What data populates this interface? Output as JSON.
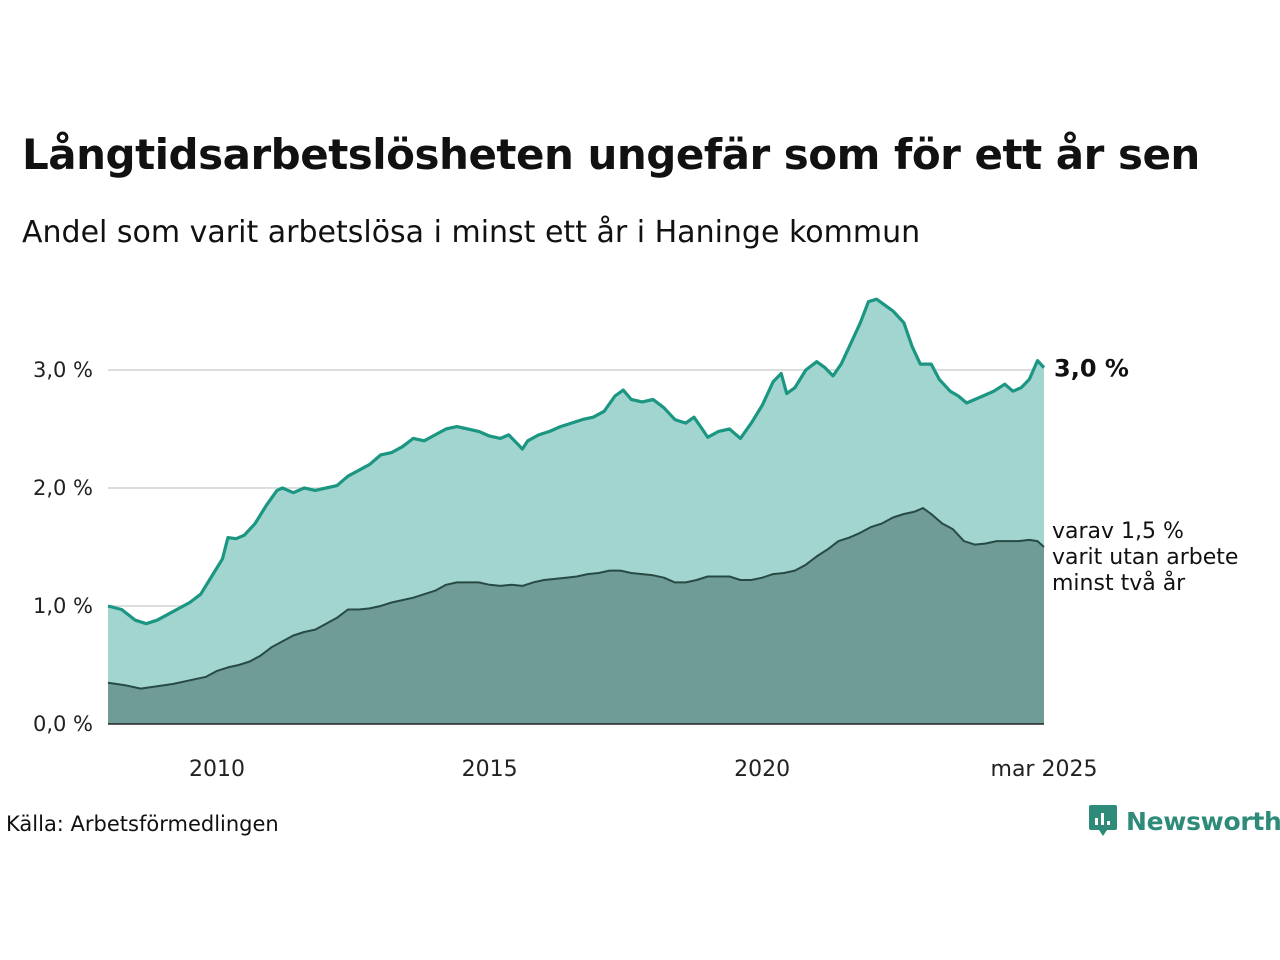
{
  "title": "Långtidsarbetslösheten ungefär som för ett år sen",
  "subtitle": "Andel som varit arbetslösa i minst ett år i Haninge kommun",
  "source": "Källa: Arbetsförmedlingen",
  "brand": "Newsworthy",
  "colors": {
    "series1_line": "#1a9682",
    "series1_fill": "#a2d5cf",
    "series2_line": "#284a46",
    "series2_fill": "#6f9c96",
    "grid": "#dddddd",
    "brand": "#2e8b7a"
  },
  "chart_data": {
    "type": "area",
    "title": "Långtidsarbetslösheten ungefär som för ett år sen",
    "subtitle": "Andel som varit arbetslösa i minst ett år i Haninge kommun",
    "x_unit": "year (decimal)",
    "xlim": [
      2008.0,
      2025.17
    ],
    "ylim": [
      0,
      3.5
    ],
    "y_ticks": [
      {
        "value": 0,
        "label": "0,0 %"
      },
      {
        "value": 1,
        "label": "1,0 %"
      },
      {
        "value": 2,
        "label": "2,0 %"
      },
      {
        "value": 3,
        "label": "3,0 %"
      }
    ],
    "x_ticks": [
      {
        "value": 2010,
        "label": "2010"
      },
      {
        "value": 2015,
        "label": "2015"
      },
      {
        "value": 2020,
        "label": "2020"
      },
      {
        "value": 2025.17,
        "label": "mar 2025"
      }
    ],
    "grid": true,
    "series": [
      {
        "label_end": "3,0 %",
        "points": [
          [
            2008.0,
            1.0
          ],
          [
            2008.25,
            0.97
          ],
          [
            2008.5,
            0.88
          ],
          [
            2008.7,
            0.85
          ],
          [
            2008.9,
            0.88
          ],
          [
            2009.1,
            0.93
          ],
          [
            2009.3,
            0.98
          ],
          [
            2009.5,
            1.03
          ],
          [
            2009.7,
            1.1
          ],
          [
            2009.9,
            1.25
          ],
          [
            2010.1,
            1.4
          ],
          [
            2010.2,
            1.58
          ],
          [
            2010.35,
            1.57
          ],
          [
            2010.5,
            1.6
          ],
          [
            2010.7,
            1.7
          ],
          [
            2010.9,
            1.85
          ],
          [
            2011.1,
            1.98
          ],
          [
            2011.2,
            2.0
          ],
          [
            2011.4,
            1.96
          ],
          [
            2011.6,
            2.0
          ],
          [
            2011.8,
            1.98
          ],
          [
            2012.0,
            2.0
          ],
          [
            2012.2,
            2.02
          ],
          [
            2012.4,
            2.1
          ],
          [
            2012.6,
            2.15
          ],
          [
            2012.8,
            2.2
          ],
          [
            2013.0,
            2.28
          ],
          [
            2013.2,
            2.3
          ],
          [
            2013.4,
            2.35
          ],
          [
            2013.6,
            2.42
          ],
          [
            2013.8,
            2.4
          ],
          [
            2014.0,
            2.45
          ],
          [
            2014.2,
            2.5
          ],
          [
            2014.4,
            2.52
          ],
          [
            2014.6,
            2.5
          ],
          [
            2014.8,
            2.48
          ],
          [
            2015.0,
            2.44
          ],
          [
            2015.2,
            2.42
          ],
          [
            2015.35,
            2.45
          ],
          [
            2015.5,
            2.38
          ],
          [
            2015.6,
            2.33
          ],
          [
            2015.7,
            2.4
          ],
          [
            2015.9,
            2.45
          ],
          [
            2016.1,
            2.48
          ],
          [
            2016.3,
            2.52
          ],
          [
            2016.5,
            2.55
          ],
          [
            2016.7,
            2.58
          ],
          [
            2016.9,
            2.6
          ],
          [
            2017.1,
            2.65
          ],
          [
            2017.3,
            2.78
          ],
          [
            2017.45,
            2.83
          ],
          [
            2017.6,
            2.75
          ],
          [
            2017.8,
            2.73
          ],
          [
            2018.0,
            2.75
          ],
          [
            2018.2,
            2.68
          ],
          [
            2018.4,
            2.58
          ],
          [
            2018.6,
            2.55
          ],
          [
            2018.75,
            2.6
          ],
          [
            2018.9,
            2.5
          ],
          [
            2019.0,
            2.43
          ],
          [
            2019.2,
            2.48
          ],
          [
            2019.4,
            2.5
          ],
          [
            2019.6,
            2.42
          ],
          [
            2019.8,
            2.55
          ],
          [
            2020.0,
            2.7
          ],
          [
            2020.2,
            2.9
          ],
          [
            2020.35,
            2.97
          ],
          [
            2020.45,
            2.8
          ],
          [
            2020.6,
            2.85
          ],
          [
            2020.8,
            3.0
          ],
          [
            2021.0,
            3.07
          ],
          [
            2021.15,
            3.02
          ],
          [
            2021.3,
            2.95
          ],
          [
            2021.45,
            3.05
          ],
          [
            2021.6,
            3.2
          ],
          [
            2021.8,
            3.4
          ],
          [
            2021.95,
            3.58
          ],
          [
            2022.1,
            3.6
          ],
          [
            2022.25,
            3.55
          ],
          [
            2022.4,
            3.5
          ],
          [
            2022.6,
            3.4
          ],
          [
            2022.75,
            3.2
          ],
          [
            2022.9,
            3.05
          ],
          [
            2023.1,
            3.05
          ],
          [
            2023.25,
            2.92
          ],
          [
            2023.45,
            2.82
          ],
          [
            2023.6,
            2.78
          ],
          [
            2023.75,
            2.72
          ],
          [
            2023.9,
            2.75
          ],
          [
            2024.05,
            2.78
          ],
          [
            2024.25,
            2.82
          ],
          [
            2024.45,
            2.88
          ],
          [
            2024.6,
            2.82
          ],
          [
            2024.75,
            2.85
          ],
          [
            2024.9,
            2.92
          ],
          [
            2025.05,
            3.08
          ],
          [
            2025.17,
            3.02
          ]
        ]
      },
      {
        "label_end": [
          "varav 1,5 %",
          "varit utan arbete",
          "minst två år"
        ],
        "points": [
          [
            2008.0,
            0.35
          ],
          [
            2008.3,
            0.33
          ],
          [
            2008.6,
            0.3
          ],
          [
            2008.9,
            0.32
          ],
          [
            2009.2,
            0.34
          ],
          [
            2009.5,
            0.37
          ],
          [
            2009.8,
            0.4
          ],
          [
            2010.0,
            0.45
          ],
          [
            2010.2,
            0.48
          ],
          [
            2010.4,
            0.5
          ],
          [
            2010.6,
            0.53
          ],
          [
            2010.8,
            0.58
          ],
          [
            2011.0,
            0.65
          ],
          [
            2011.2,
            0.7
          ],
          [
            2011.4,
            0.75
          ],
          [
            2011.6,
            0.78
          ],
          [
            2011.8,
            0.8
          ],
          [
            2012.0,
            0.85
          ],
          [
            2012.2,
            0.9
          ],
          [
            2012.4,
            0.97
          ],
          [
            2012.6,
            0.97
          ],
          [
            2012.8,
            0.98
          ],
          [
            2013.0,
            1.0
          ],
          [
            2013.2,
            1.03
          ],
          [
            2013.4,
            1.05
          ],
          [
            2013.6,
            1.07
          ],
          [
            2013.8,
            1.1
          ],
          [
            2014.0,
            1.13
          ],
          [
            2014.2,
            1.18
          ],
          [
            2014.4,
            1.2
          ],
          [
            2014.6,
            1.2
          ],
          [
            2014.8,
            1.2
          ],
          [
            2015.0,
            1.18
          ],
          [
            2015.2,
            1.17
          ],
          [
            2015.4,
            1.18
          ],
          [
            2015.6,
            1.17
          ],
          [
            2015.8,
            1.2
          ],
          [
            2016.0,
            1.22
          ],
          [
            2016.2,
            1.23
          ],
          [
            2016.4,
            1.24
          ],
          [
            2016.6,
            1.25
          ],
          [
            2016.8,
            1.27
          ],
          [
            2017.0,
            1.28
          ],
          [
            2017.2,
            1.3
          ],
          [
            2017.4,
            1.3
          ],
          [
            2017.6,
            1.28
          ],
          [
            2017.8,
            1.27
          ],
          [
            2018.0,
            1.26
          ],
          [
            2018.2,
            1.24
          ],
          [
            2018.4,
            1.2
          ],
          [
            2018.6,
            1.2
          ],
          [
            2018.8,
            1.22
          ],
          [
            2019.0,
            1.25
          ],
          [
            2019.2,
            1.25
          ],
          [
            2019.4,
            1.25
          ],
          [
            2019.6,
            1.22
          ],
          [
            2019.8,
            1.22
          ],
          [
            2020.0,
            1.24
          ],
          [
            2020.2,
            1.27
          ],
          [
            2020.4,
            1.28
          ],
          [
            2020.6,
            1.3
          ],
          [
            2020.8,
            1.35
          ],
          [
            2021.0,
            1.42
          ],
          [
            2021.2,
            1.48
          ],
          [
            2021.4,
            1.55
          ],
          [
            2021.6,
            1.58
          ],
          [
            2021.8,
            1.62
          ],
          [
            2022.0,
            1.67
          ],
          [
            2022.2,
            1.7
          ],
          [
            2022.4,
            1.75
          ],
          [
            2022.6,
            1.78
          ],
          [
            2022.8,
            1.8
          ],
          [
            2022.95,
            1.83
          ],
          [
            2023.1,
            1.78
          ],
          [
            2023.3,
            1.7
          ],
          [
            2023.5,
            1.65
          ],
          [
            2023.7,
            1.55
          ],
          [
            2023.9,
            1.52
          ],
          [
            2024.1,
            1.53
          ],
          [
            2024.3,
            1.55
          ],
          [
            2024.5,
            1.55
          ],
          [
            2024.7,
            1.55
          ],
          [
            2024.9,
            1.56
          ],
          [
            2025.05,
            1.55
          ],
          [
            2025.17,
            1.5
          ]
        ]
      }
    ]
  }
}
